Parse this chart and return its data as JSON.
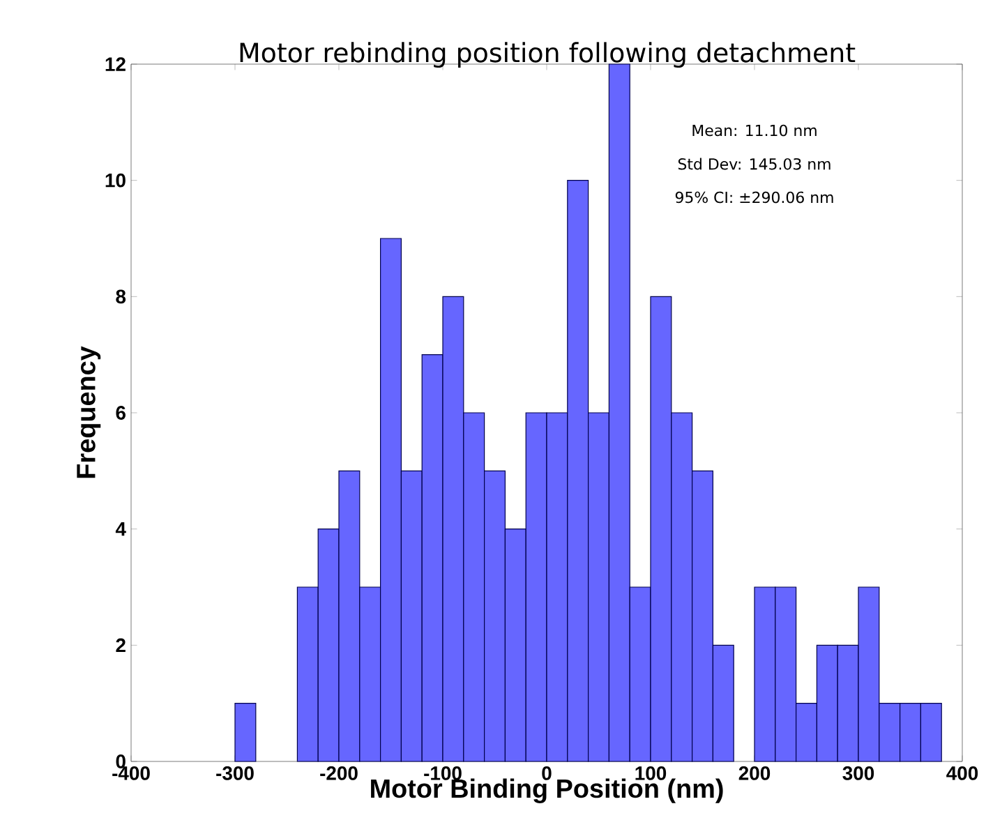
{
  "chart_data": {
    "type": "histogram",
    "title": "Motor rebinding position following detachment",
    "xlabel": "Motor Binding Position (nm)",
    "ylabel": "Frequency",
    "bins": [
      -300,
      -280,
      -260,
      -240,
      -220,
      -200,
      -180,
      -160,
      -140,
      -120,
      -100,
      -80,
      -60,
      -40,
      -20,
      0,
      20,
      40,
      60,
      80,
      100,
      120,
      140,
      160,
      180,
      200,
      220,
      240,
      260,
      280,
      300,
      320,
      340,
      360,
      380
    ],
    "values": [
      1,
      0,
      0,
      3,
      4,
      5,
      3,
      9,
      5,
      7,
      8,
      6,
      5,
      4,
      6,
      6,
      10,
      6,
      12,
      3,
      8,
      6,
      5,
      2,
      0,
      3,
      3,
      1,
      2,
      2,
      3,
      1,
      1,
      1
    ],
    "color": "#6666ff",
    "xlim": [
      -400,
      400
    ],
    "ylim": [
      0,
      12
    ],
    "xticks": [
      -400,
      -300,
      -200,
      -100,
      0,
      100,
      200,
      300,
      400
    ],
    "yticks": [
      0,
      2,
      4,
      6,
      8,
      10,
      12
    ],
    "annotations": [
      "Mean: 11.10 nm",
      "Std Dev: 145.03 nm",
      "95% CI: ±290.06 nm"
    ],
    "grid": false
  }
}
